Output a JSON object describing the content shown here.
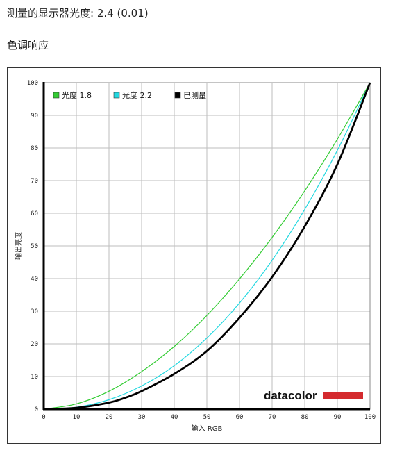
{
  "header": {
    "gamma_label": "测量的显示器光度:",
    "gamma_value": "2.4 (0.01)",
    "section_title": "色调响应"
  },
  "brand": {
    "logo_text": "datacolor",
    "accent_color": "#d42a2e"
  },
  "chart_data": {
    "type": "line",
    "title": "",
    "xlabel": "输入 RGB",
    "ylabel": "输出亮度",
    "xlim": [
      0,
      100
    ],
    "ylim": [
      0,
      100
    ],
    "xticks": [
      0,
      10,
      20,
      30,
      40,
      50,
      60,
      70,
      80,
      90,
      100
    ],
    "yticks": [
      0,
      10,
      20,
      30,
      40,
      50,
      60,
      70,
      80,
      90,
      100
    ],
    "grid": true,
    "legend_position": "top-left",
    "series": [
      {
        "name": "光度 1.8",
        "color": "#33cc33",
        "x": [
          0,
          10,
          20,
          30,
          40,
          50,
          60,
          70,
          80,
          90,
          100
        ],
        "y": [
          0,
          1.6,
          5.5,
          11.5,
          19.2,
          28.7,
          39.9,
          52.6,
          66.9,
          82.7,
          100
        ]
      },
      {
        "name": "光度 2.2",
        "color": "#22d8e0",
        "x": [
          0,
          10,
          20,
          30,
          40,
          50,
          60,
          70,
          80,
          90,
          100
        ],
        "y": [
          0,
          0.6,
          2.9,
          7.1,
          13.3,
          21.8,
          32.5,
          45.6,
          61.2,
          79.3,
          100
        ]
      },
      {
        "name": "已测量",
        "color": "#000000",
        "x": [
          0,
          10,
          20,
          25,
          30,
          40,
          50,
          60,
          70,
          80,
          90,
          100
        ],
        "y": [
          0,
          0.4,
          2.0,
          3.5,
          5.5,
          10.8,
          17.8,
          28.0,
          40.5,
          56.0,
          75.0,
          100
        ]
      }
    ]
  }
}
